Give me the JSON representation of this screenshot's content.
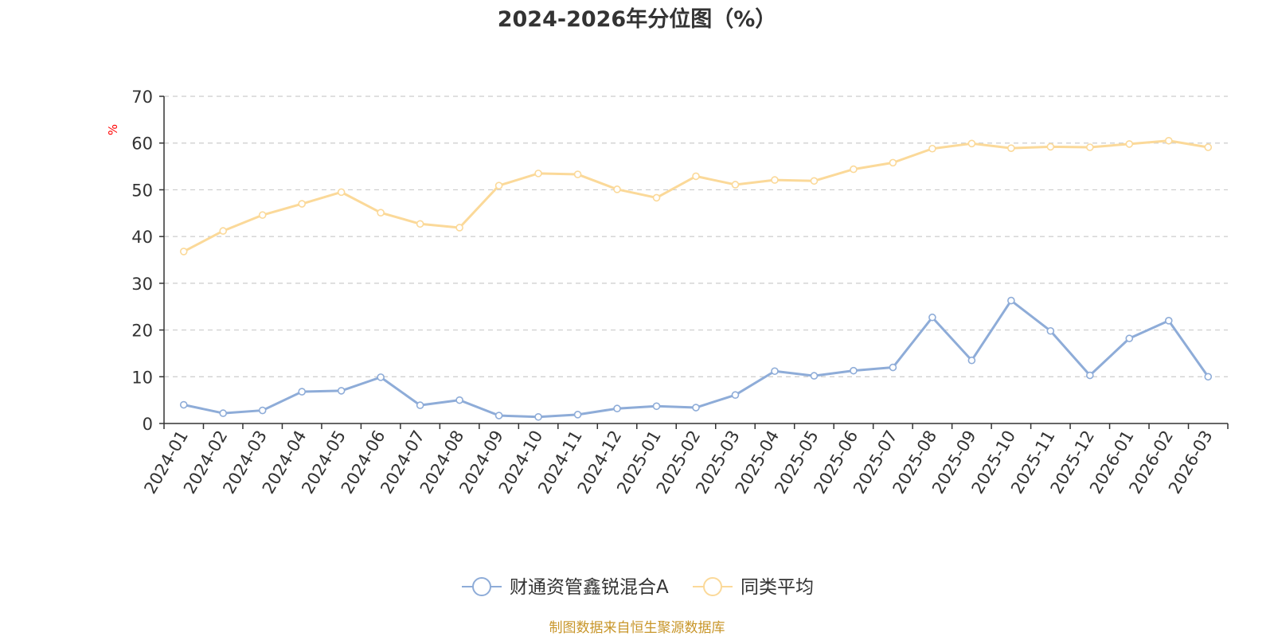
{
  "chart_data": {
    "type": "line",
    "title": "2024-2026年分位图（%）",
    "ylabel": "%",
    "ylim": [
      0,
      70
    ],
    "yticks": [
      0,
      10,
      20,
      30,
      40,
      50,
      60,
      70
    ],
    "grid": true,
    "legend_position": "bottom",
    "categories": [
      "2024-01",
      "2024-02",
      "2024-03",
      "2024-04",
      "2024-05",
      "2024-06",
      "2024-07",
      "2024-08",
      "2024-09",
      "2024-10",
      "2024-11",
      "2024-12",
      "2025-01",
      "2025-02",
      "2025-03",
      "2025-04",
      "2025-05",
      "2025-06",
      "2025-07",
      "2025-08",
      "2025-09",
      "2025-10",
      "2025-11",
      "2025-12",
      "2026-01",
      "2026-02",
      "2026-03"
    ],
    "series": [
      {
        "name": "财通资管鑫锐混合A",
        "color": "#8eacd8",
        "values": [
          4.0,
          2.2,
          2.8,
          6.8,
          7.0,
          9.9,
          3.9,
          5.0,
          1.7,
          1.4,
          1.9,
          3.2,
          3.7,
          3.4,
          6.1,
          11.2,
          10.2,
          11.3,
          12.0,
          22.7,
          13.5,
          26.3,
          19.8,
          10.3,
          18.2,
          22.0,
          10.0
        ]
      },
      {
        "name": "同类平均",
        "color": "#fbd999",
        "values": [
          36.8,
          41.2,
          44.6,
          47.0,
          49.5,
          45.1,
          42.7,
          41.9,
          50.9,
          53.5,
          53.3,
          50.1,
          48.3,
          52.9,
          51.1,
          52.1,
          51.9,
          54.4,
          55.8,
          58.8,
          59.9,
          58.9,
          59.2,
          59.1,
          59.8,
          60.5,
          59.1
        ]
      }
    ]
  },
  "footer": {
    "source": "制图数据来自恒生聚源数据库",
    "source_color": "#c8962a"
  }
}
